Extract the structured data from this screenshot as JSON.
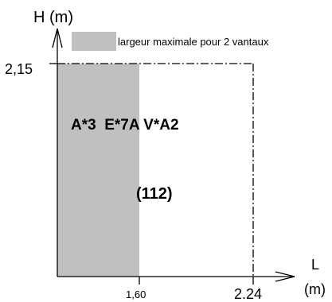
{
  "axes": {
    "y_label": "H (m)",
    "x_label_letter": "L",
    "x_label_unit": "(m)",
    "y_tick": "2,15",
    "x_tick_shaded": "1,60",
    "x_tick_end": "2.24"
  },
  "legend": {
    "text": "largeur maximale pour 2 vantaux",
    "swatch_color": "#c0c0c0"
  },
  "classification": {
    "ratings": "A*3  E*7A V*A2",
    "code": "(112)"
  }
}
